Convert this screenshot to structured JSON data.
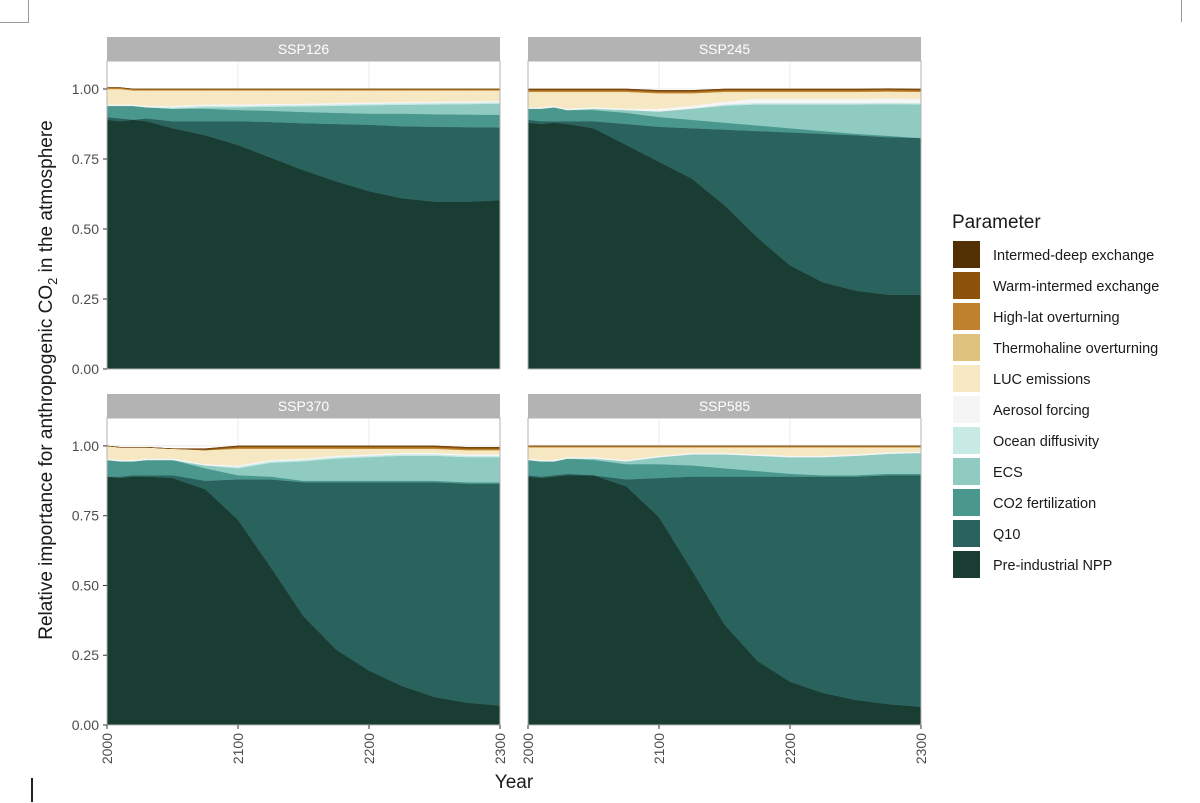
{
  "chart_data": {
    "type": "area",
    "stacked": true,
    "normalized": true,
    "ylabel_parts": [
      "Relative importance for anthropogenic CO",
      "2",
      " in the atmosphere"
    ],
    "xlabel": "Year",
    "x_ticks": [
      "2000",
      "2100",
      "2200",
      "2300"
    ],
    "y_ticks": [
      "0.00",
      "0.25",
      "0.50",
      "0.75",
      "1.00"
    ],
    "xlim": [
      2000,
      2300
    ],
    "ylim": [
      0,
      1.1
    ],
    "grid": true,
    "legend": {
      "title": "Parameter",
      "position": "right",
      "entries": [
        {
          "label": "Intermed-deep exchange",
          "color": "#543005"
        },
        {
          "label": "Warm-intermed exchange",
          "color": "#8c510a"
        },
        {
          "label": "High-lat overturning",
          "color": "#bf812d"
        },
        {
          "label": "Thermohaline overturning",
          "color": "#dfc27d"
        },
        {
          "label": "LUC emissions",
          "color": "#f6e8c3"
        },
        {
          "label": "Aerosol forcing",
          "color": "#f5f5f5"
        },
        {
          "label": "Ocean diffusivity",
          "color": "#c7eae5"
        },
        {
          "label": "ECS",
          "color": "#8fcbc0"
        },
        {
          "label": "CO2 fertilization",
          "color": "#4a978d"
        },
        {
          "label": "Q10",
          "color": "#2a625d"
        },
        {
          "label": "Pre-industrial NPP",
          "color": "#1a3d33"
        }
      ]
    },
    "x": [
      2000,
      2010,
      2020,
      2030,
      2050,
      2075,
      2100,
      2125,
      2150,
      2175,
      2200,
      2225,
      2250,
      2275,
      2300
    ],
    "panels": [
      {
        "title": "SSP126",
        "series": [
          {
            "name": "Pre-industrial NPP",
            "values": [
              0.89,
              0.885,
              0.89,
              0.885,
              0.86,
              0.835,
              0.8,
              0.755,
              0.71,
              0.67,
              0.635,
              0.61,
              0.598,
              0.597,
              0.603
            ]
          },
          {
            "name": "Q10",
            "values": [
              0.01,
              0.01,
              0.0,
              0.01,
              0.025,
              0.05,
              0.085,
              0.127,
              0.168,
              0.205,
              0.237,
              0.257,
              0.267,
              0.267,
              0.26
            ]
          },
          {
            "name": "CO2 fertilization",
            "values": [
              0.04,
              0.045,
              0.05,
              0.04,
              0.045,
              0.045,
              0.04,
              0.04,
              0.04,
              0.04,
              0.04,
              0.045,
              0.045,
              0.045,
              0.045
            ]
          },
          {
            "name": "ECS",
            "values": [
              0.0,
              0.0,
              0.0,
              0.0,
              0.0,
              0.005,
              0.01,
              0.015,
              0.02,
              0.025,
              0.03,
              0.032,
              0.035,
              0.037,
              0.04
            ]
          },
          {
            "name": "Ocean diffusivity",
            "values": [
              0.0,
              0.0,
              0.0,
              0.0,
              0.005,
              0.005,
              0.005,
              0.005,
              0.005,
              0.005,
              0.005,
              0.005,
              0.005,
              0.005,
              0.005
            ]
          },
          {
            "name": "Aerosol forcing",
            "values": [
              0.005,
              0.005,
              0.005,
              0.005,
              0.005,
              0.005,
              0.005,
              0.005,
              0.005,
              0.005,
              0.005,
              0.005,
              0.005,
              0.005,
              0.005
            ]
          },
          {
            "name": "LUC emissions",
            "values": [
              0.055,
              0.055,
              0.05,
              0.055,
              0.055,
              0.05,
              0.05,
              0.048,
              0.047,
              0.045,
              0.043,
              0.041,
              0.04,
              0.039,
              0.037
            ]
          },
          {
            "name": "Thermohaline overturning",
            "values": [
              0.0,
              0.0,
              0.0,
              0.0,
              0.0,
              0.0,
              0.0,
              0.0,
              0.0,
              0.0,
              0.0,
              0.0,
              0.0,
              0.0,
              0.0
            ]
          },
          {
            "name": "High-lat overturning",
            "values": [
              0.005,
              0.005,
              0.005,
              0.005,
              0.005,
              0.005,
              0.005,
              0.005,
              0.005,
              0.005,
              0.005,
              0.005,
              0.005,
              0.005,
              0.005
            ]
          },
          {
            "name": "Warm-intermed exchange",
            "values": [
              0.0,
              0.0,
              0.0,
              0.0,
              0.0,
              0.0,
              0.0,
              0.0,
              0.0,
              0.0,
              0.0,
              0.0,
              0.0,
              0.0,
              0.0
            ]
          },
          {
            "name": "Intermed-deep exchange",
            "values": [
              0.0,
              0.0,
              0.0,
              0.0,
              0.0,
              0.0,
              0.0,
              0.0,
              0.0,
              0.0,
              0.0,
              0.0,
              0.0,
              0.0,
              0.0
            ]
          }
        ]
      },
      {
        "title": "SSP245",
        "series": [
          {
            "name": "Pre-industrial NPP",
            "values": [
              0.88,
              0.875,
              0.88,
              0.875,
              0.86,
              0.8,
              0.74,
              0.68,
              0.585,
              0.47,
              0.37,
              0.31,
              0.28,
              0.265,
              0.265
            ]
          },
          {
            "name": "Q10",
            "values": [
              0.01,
              0.01,
              0.005,
              0.01,
              0.025,
              0.075,
              0.125,
              0.18,
              0.27,
              0.38,
              0.475,
              0.53,
              0.555,
              0.563,
              0.56
            ]
          },
          {
            "name": "CO2 fertilization",
            "values": [
              0.04,
              0.045,
              0.05,
              0.04,
              0.04,
              0.04,
              0.035,
              0.03,
              0.025,
              0.02,
              0.015,
              0.01,
              0.005,
              0.005,
              0.0
            ]
          },
          {
            "name": "ECS",
            "values": [
              0.0,
              0.0,
              0.0,
              0.0,
              0.005,
              0.01,
              0.02,
              0.04,
              0.06,
              0.075,
              0.085,
              0.095,
              0.105,
              0.113,
              0.12
            ]
          },
          {
            "name": "Ocean diffusivity",
            "values": [
              0.0,
              0.0,
              0.0,
              0.0,
              0.0,
              0.0,
              0.0,
              0.0,
              0.005,
              0.005,
              0.005,
              0.005,
              0.005,
              0.005,
              0.005
            ]
          },
          {
            "name": "Aerosol forcing",
            "values": [
              0.005,
              0.005,
              0.005,
              0.005,
              0.005,
              0.005,
              0.01,
              0.01,
              0.01,
              0.015,
              0.015,
              0.015,
              0.015,
              0.015,
              0.015
            ]
          },
          {
            "name": "LUC emissions",
            "values": [
              0.055,
              0.055,
              0.05,
              0.06,
              0.055,
              0.06,
              0.055,
              0.045,
              0.035,
              0.025,
              0.025,
              0.025,
              0.025,
              0.025,
              0.025
            ]
          },
          {
            "name": "Thermohaline overturning",
            "values": [
              0.0,
              0.0,
              0.0,
              0.0,
              0.0,
              0.0,
              0.0,
              0.0,
              0.0,
              0.0,
              0.0,
              0.0,
              0.0,
              0.0,
              0.0
            ]
          },
          {
            "name": "High-lat overturning",
            "values": [
              0.005,
              0.005,
              0.005,
              0.005,
              0.005,
              0.005,
              0.005,
              0.005,
              0.005,
              0.005,
              0.005,
              0.005,
              0.005,
              0.005,
              0.005
            ]
          },
          {
            "name": "Warm-intermed exchange",
            "values": [
              0.005,
              0.005,
              0.005,
              0.005,
              0.005,
              0.005,
              0.005,
              0.005,
              0.005,
              0.005,
              0.005,
              0.005,
              0.005,
              0.005,
              0.005
            ]
          },
          {
            "name": "Intermed-deep exchange",
            "values": [
              0.0,
              0.0,
              0.0,
              0.0,
              0.0,
              0.0,
              0.0,
              0.0,
              0.0,
              0.0,
              0.0,
              0.0,
              0.0,
              0.0,
              0.0
            ]
          }
        ]
      },
      {
        "title": "SSP370",
        "series": [
          {
            "name": "Pre-industrial NPP",
            "values": [
              0.89,
              0.885,
              0.89,
              0.89,
              0.885,
              0.845,
              0.735,
              0.565,
              0.39,
              0.27,
              0.195,
              0.14,
              0.1,
              0.08,
              0.07
            ]
          },
          {
            "name": "Q10",
            "values": [
              0.0,
              0.005,
              0.005,
              0.005,
              0.01,
              0.03,
              0.145,
              0.315,
              0.48,
              0.6,
              0.675,
              0.73,
              0.77,
              0.785,
              0.795
            ]
          },
          {
            "name": "CO2 fertilization",
            "values": [
              0.06,
              0.055,
              0.05,
              0.055,
              0.055,
              0.045,
              0.015,
              0.01,
              0.005,
              0.005,
              0.005,
              0.005,
              0.005,
              0.005,
              0.005
            ]
          },
          {
            "name": "ECS",
            "values": [
              0.0,
              0.0,
              0.0,
              0.0,
              0.0,
              0.01,
              0.025,
              0.05,
              0.07,
              0.08,
              0.085,
              0.09,
              0.09,
              0.09,
              0.09
            ]
          },
          {
            "name": "Ocean diffusivity",
            "values": [
              0.0,
              0.0,
              0.0,
              0.0,
              0.0,
              0.0,
              0.005,
              0.005,
              0.005,
              0.005,
              0.005,
              0.005,
              0.005,
              0.005,
              0.005
            ]
          },
          {
            "name": "Aerosol forcing",
            "values": [
              0.005,
              0.005,
              0.005,
              0.005,
              0.005,
              0.005,
              0.005,
              0.005,
              0.005,
              0.005,
              0.005,
              0.005,
              0.005,
              0.005,
              0.005
            ]
          },
          {
            "name": "LUC emissions",
            "values": [
              0.045,
              0.045,
              0.045,
              0.04,
              0.035,
              0.05,
              0.06,
              0.04,
              0.035,
              0.025,
              0.02,
              0.015,
              0.015,
              0.015,
              0.015
            ]
          },
          {
            "name": "Thermohaline overturning",
            "values": [
              0.0,
              0.0,
              0.0,
              0.0,
              0.0,
              0.0,
              0.0,
              0.0,
              0.0,
              0.0,
              0.0,
              0.0,
              0.0,
              0.0,
              0.0
            ]
          },
          {
            "name": "High-lat overturning",
            "values": [
              0.0,
              0.0,
              0.0,
              0.0,
              0.0,
              0.0,
              0.005,
              0.005,
              0.005,
              0.005,
              0.005,
              0.005,
              0.005,
              0.005,
              0.005
            ]
          },
          {
            "name": "Warm-intermed exchange",
            "values": [
              0.0,
              0.0,
              0.0,
              0.0,
              0.0,
              0.005,
              0.005,
              0.005,
              0.005,
              0.005,
              0.005,
              0.005,
              0.005,
              0.005,
              0.005
            ]
          },
          {
            "name": "Intermed-deep exchange",
            "values": [
              0.0,
              0.0,
              0.0,
              0.0,
              0.0,
              0.0,
              0.0,
              0.0,
              0.0,
              0.0,
              0.0,
              0.0,
              0.0,
              0.0,
              0.0
            ]
          }
        ]
      },
      {
        "title": "SSP585",
        "series": [
          {
            "name": "Pre-industrial NPP",
            "values": [
              0.89,
              0.885,
              0.89,
              0.895,
              0.895,
              0.855,
              0.745,
              0.555,
              0.36,
              0.23,
              0.155,
              0.115,
              0.09,
              0.075,
              0.065
            ]
          },
          {
            "name": "Q10",
            "values": [
              0.005,
              0.005,
              0.005,
              0.005,
              0.0,
              0.025,
              0.14,
              0.335,
              0.53,
              0.66,
              0.735,
              0.775,
              0.8,
              0.82,
              0.83
            ]
          },
          {
            "name": "CO2 fertilization",
            "values": [
              0.055,
              0.055,
              0.05,
              0.055,
              0.055,
              0.055,
              0.05,
              0.04,
              0.03,
              0.02,
              0.01,
              0.005,
              0.005,
              0.005,
              0.005
            ]
          },
          {
            "name": "ECS",
            "values": [
              0.0,
              0.0,
              0.0,
              0.0,
              0.005,
              0.01,
              0.025,
              0.04,
              0.05,
              0.055,
              0.06,
              0.065,
              0.07,
              0.072,
              0.075
            ]
          },
          {
            "name": "Ocean diffusivity",
            "values": [
              0.0,
              0.0,
              0.0,
              0.0,
              0.0,
              0.0,
              0.0,
              0.0,
              0.0,
              0.0,
              0.0,
              0.0,
              0.0,
              0.0,
              0.0
            ]
          },
          {
            "name": "Aerosol forcing",
            "values": [
              0.005,
              0.005,
              0.005,
              0.005,
              0.005,
              0.005,
              0.005,
              0.005,
              0.005,
              0.005,
              0.005,
              0.005,
              0.005,
              0.005,
              0.005
            ]
          },
          {
            "name": "LUC emissions",
            "values": [
              0.04,
              0.045,
              0.045,
              0.035,
              0.035,
              0.045,
              0.03,
              0.02,
              0.02,
              0.025,
              0.03,
              0.03,
              0.025,
              0.018,
              0.015
            ]
          },
          {
            "name": "Thermohaline overturning",
            "values": [
              0.0,
              0.0,
              0.0,
              0.0,
              0.0,
              0.0,
              0.0,
              0.0,
              0.0,
              0.0,
              0.0,
              0.0,
              0.0,
              0.0,
              0.0
            ]
          },
          {
            "name": "High-lat overturning",
            "values": [
              0.005,
              0.005,
              0.005,
              0.005,
              0.005,
              0.005,
              0.005,
              0.005,
              0.005,
              0.005,
              0.005,
              0.005,
              0.005,
              0.005,
              0.005
            ]
          },
          {
            "name": "Warm-intermed exchange",
            "values": [
              0.0,
              0.0,
              0.0,
              0.0,
              0.0,
              0.0,
              0.0,
              0.0,
              0.0,
              0.0,
              0.0,
              0.0,
              0.0,
              0.0,
              0.0
            ]
          },
          {
            "name": "Intermed-deep exchange",
            "values": [
              0.0,
              0.0,
              0.0,
              0.0,
              0.0,
              0.0,
              0.0,
              0.0,
              0.0,
              0.0,
              0.0,
              0.0,
              0.0,
              0.0,
              0.0
            ]
          }
        ]
      }
    ]
  }
}
